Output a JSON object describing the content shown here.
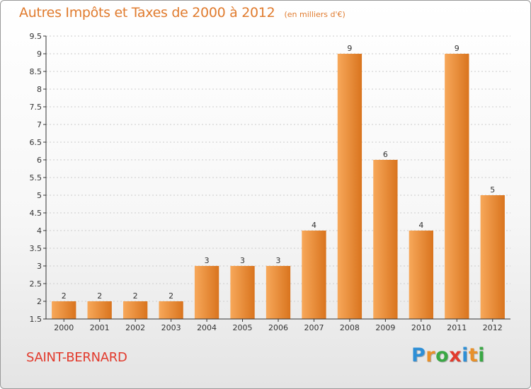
{
  "title": "Autres Impôts et Taxes de 2000 à 2012",
  "subtitle": "(en milliers d'€)",
  "commune": "SAINT-BERNARD",
  "brand": {
    "letters": [
      "P",
      "r",
      "o",
      "x",
      "i",
      "t",
      "i"
    ],
    "colors": [
      "#2e8fd6",
      "#e8902a",
      "#3aa845",
      "#e23a2c",
      "#2e8fd6",
      "#e8902a",
      "#3aa845"
    ]
  },
  "colors": {
    "bar_light": "#f7a85a",
    "bar_dark": "#d9741e",
    "text": "#e07b2e",
    "axis": "#333333",
    "grid": "#cccccc"
  },
  "chart_data": {
    "type": "bar",
    "categories": [
      "2000",
      "2001",
      "2002",
      "2003",
      "2004",
      "2005",
      "2006",
      "2007",
      "2008",
      "2009",
      "2010",
      "2011",
      "2012"
    ],
    "values": [
      2,
      2,
      2,
      2,
      3,
      3,
      3,
      4,
      9,
      6,
      4,
      9,
      5
    ],
    "data_labels": [
      "2",
      "2",
      "2",
      "2",
      "3",
      "3",
      "3",
      "4",
      "9",
      "6",
      "4",
      "9",
      "5"
    ],
    "ylim": [
      1.5,
      9.5
    ],
    "yticks": [
      1.5,
      2,
      2.5,
      3,
      3.5,
      4,
      4.5,
      5,
      5.5,
      6,
      6.5,
      7,
      7.5,
      8,
      8.5,
      9,
      9.5
    ],
    "ytick_labels": [
      "1.5",
      "2",
      "2.5",
      "3",
      "3.5",
      "4",
      "4.5",
      "5",
      "5.5",
      "6",
      "6.5",
      "7",
      "7.5",
      "8",
      "8.5",
      "9",
      "9.5"
    ],
    "grid": true,
    "xlabel": "",
    "ylabel": ""
  }
}
